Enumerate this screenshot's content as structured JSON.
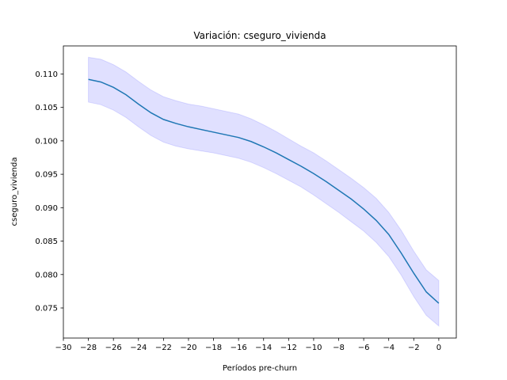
{
  "chart_data": {
    "type": "line",
    "title": "Variación: cseguro_vivienda",
    "xlabel": "Períodos pre-churn",
    "ylabel": "cseguro_vivienda",
    "xlim": [
      -30,
      1.4
    ],
    "ylim": [
      0.0705,
      0.1142
    ],
    "x_ticks": [
      -30,
      -28,
      -26,
      -24,
      -22,
      -20,
      -18,
      -16,
      -14,
      -12,
      -10,
      -8,
      -6,
      -4,
      -2,
      0
    ],
    "x_tick_labels": [
      "−30",
      "−28",
      "−26",
      "−24",
      "−22",
      "−20",
      "−18",
      "−16",
      "−14",
      "−12",
      "−10",
      "−8",
      "−6",
      "−4",
      "−2",
      "0"
    ],
    "y_ticks": [
      0.075,
      0.08,
      0.085,
      0.09,
      0.095,
      0.1,
      0.105,
      0.11
    ],
    "y_tick_labels": [
      "0.075",
      "0.080",
      "0.085",
      "0.090",
      "0.095",
      "0.100",
      "0.105",
      "0.110"
    ],
    "grid": false,
    "colors": {
      "line": "#1f77b4",
      "band": "#0000ff",
      "band_opacity": 0.12
    },
    "series": [
      {
        "x": [
          -28,
          -27,
          -26,
          -25,
          -24,
          -23,
          -22,
          -21,
          -20,
          -19,
          -18,
          -17,
          -16,
          -15,
          -14,
          -13,
          -12,
          -11,
          -10,
          -9,
          -8,
          -7,
          -6,
          -5,
          -4,
          -3,
          -2,
          -1,
          0
        ],
        "values": [
          0.1092,
          0.1088,
          0.108,
          0.1069,
          0.1055,
          0.1042,
          0.1032,
          0.1026,
          0.1021,
          0.1017,
          0.1013,
          0.1009,
          0.1005,
          0.0999,
          0.0991,
          0.0982,
          0.0972,
          0.0962,
          0.0951,
          0.0939,
          0.0926,
          0.0913,
          0.0898,
          0.0881,
          0.086,
          0.0832,
          0.0802,
          0.0774,
          0.0757
        ],
        "lower": [
          0.1058,
          0.1054,
          0.1046,
          0.1035,
          0.1021,
          0.1008,
          0.0998,
          0.0992,
          0.0988,
          0.0985,
          0.0982,
          0.0978,
          0.0974,
          0.0968,
          0.096,
          0.0951,
          0.0941,
          0.0931,
          0.0919,
          0.0906,
          0.0893,
          0.0879,
          0.0865,
          0.0848,
          0.0827,
          0.0799,
          0.0767,
          0.0739,
          0.0723
        ],
        "upper": [
          0.1125,
          0.1122,
          0.1114,
          0.1103,
          0.1089,
          0.1076,
          0.1066,
          0.106,
          0.1055,
          0.1052,
          0.1048,
          0.1044,
          0.104,
          0.1033,
          0.1024,
          0.1014,
          0.1003,
          0.0992,
          0.0982,
          0.097,
          0.0957,
          0.0944,
          0.093,
          0.0914,
          0.0893,
          0.0866,
          0.0835,
          0.0807,
          0.0791
        ]
      }
    ]
  }
}
